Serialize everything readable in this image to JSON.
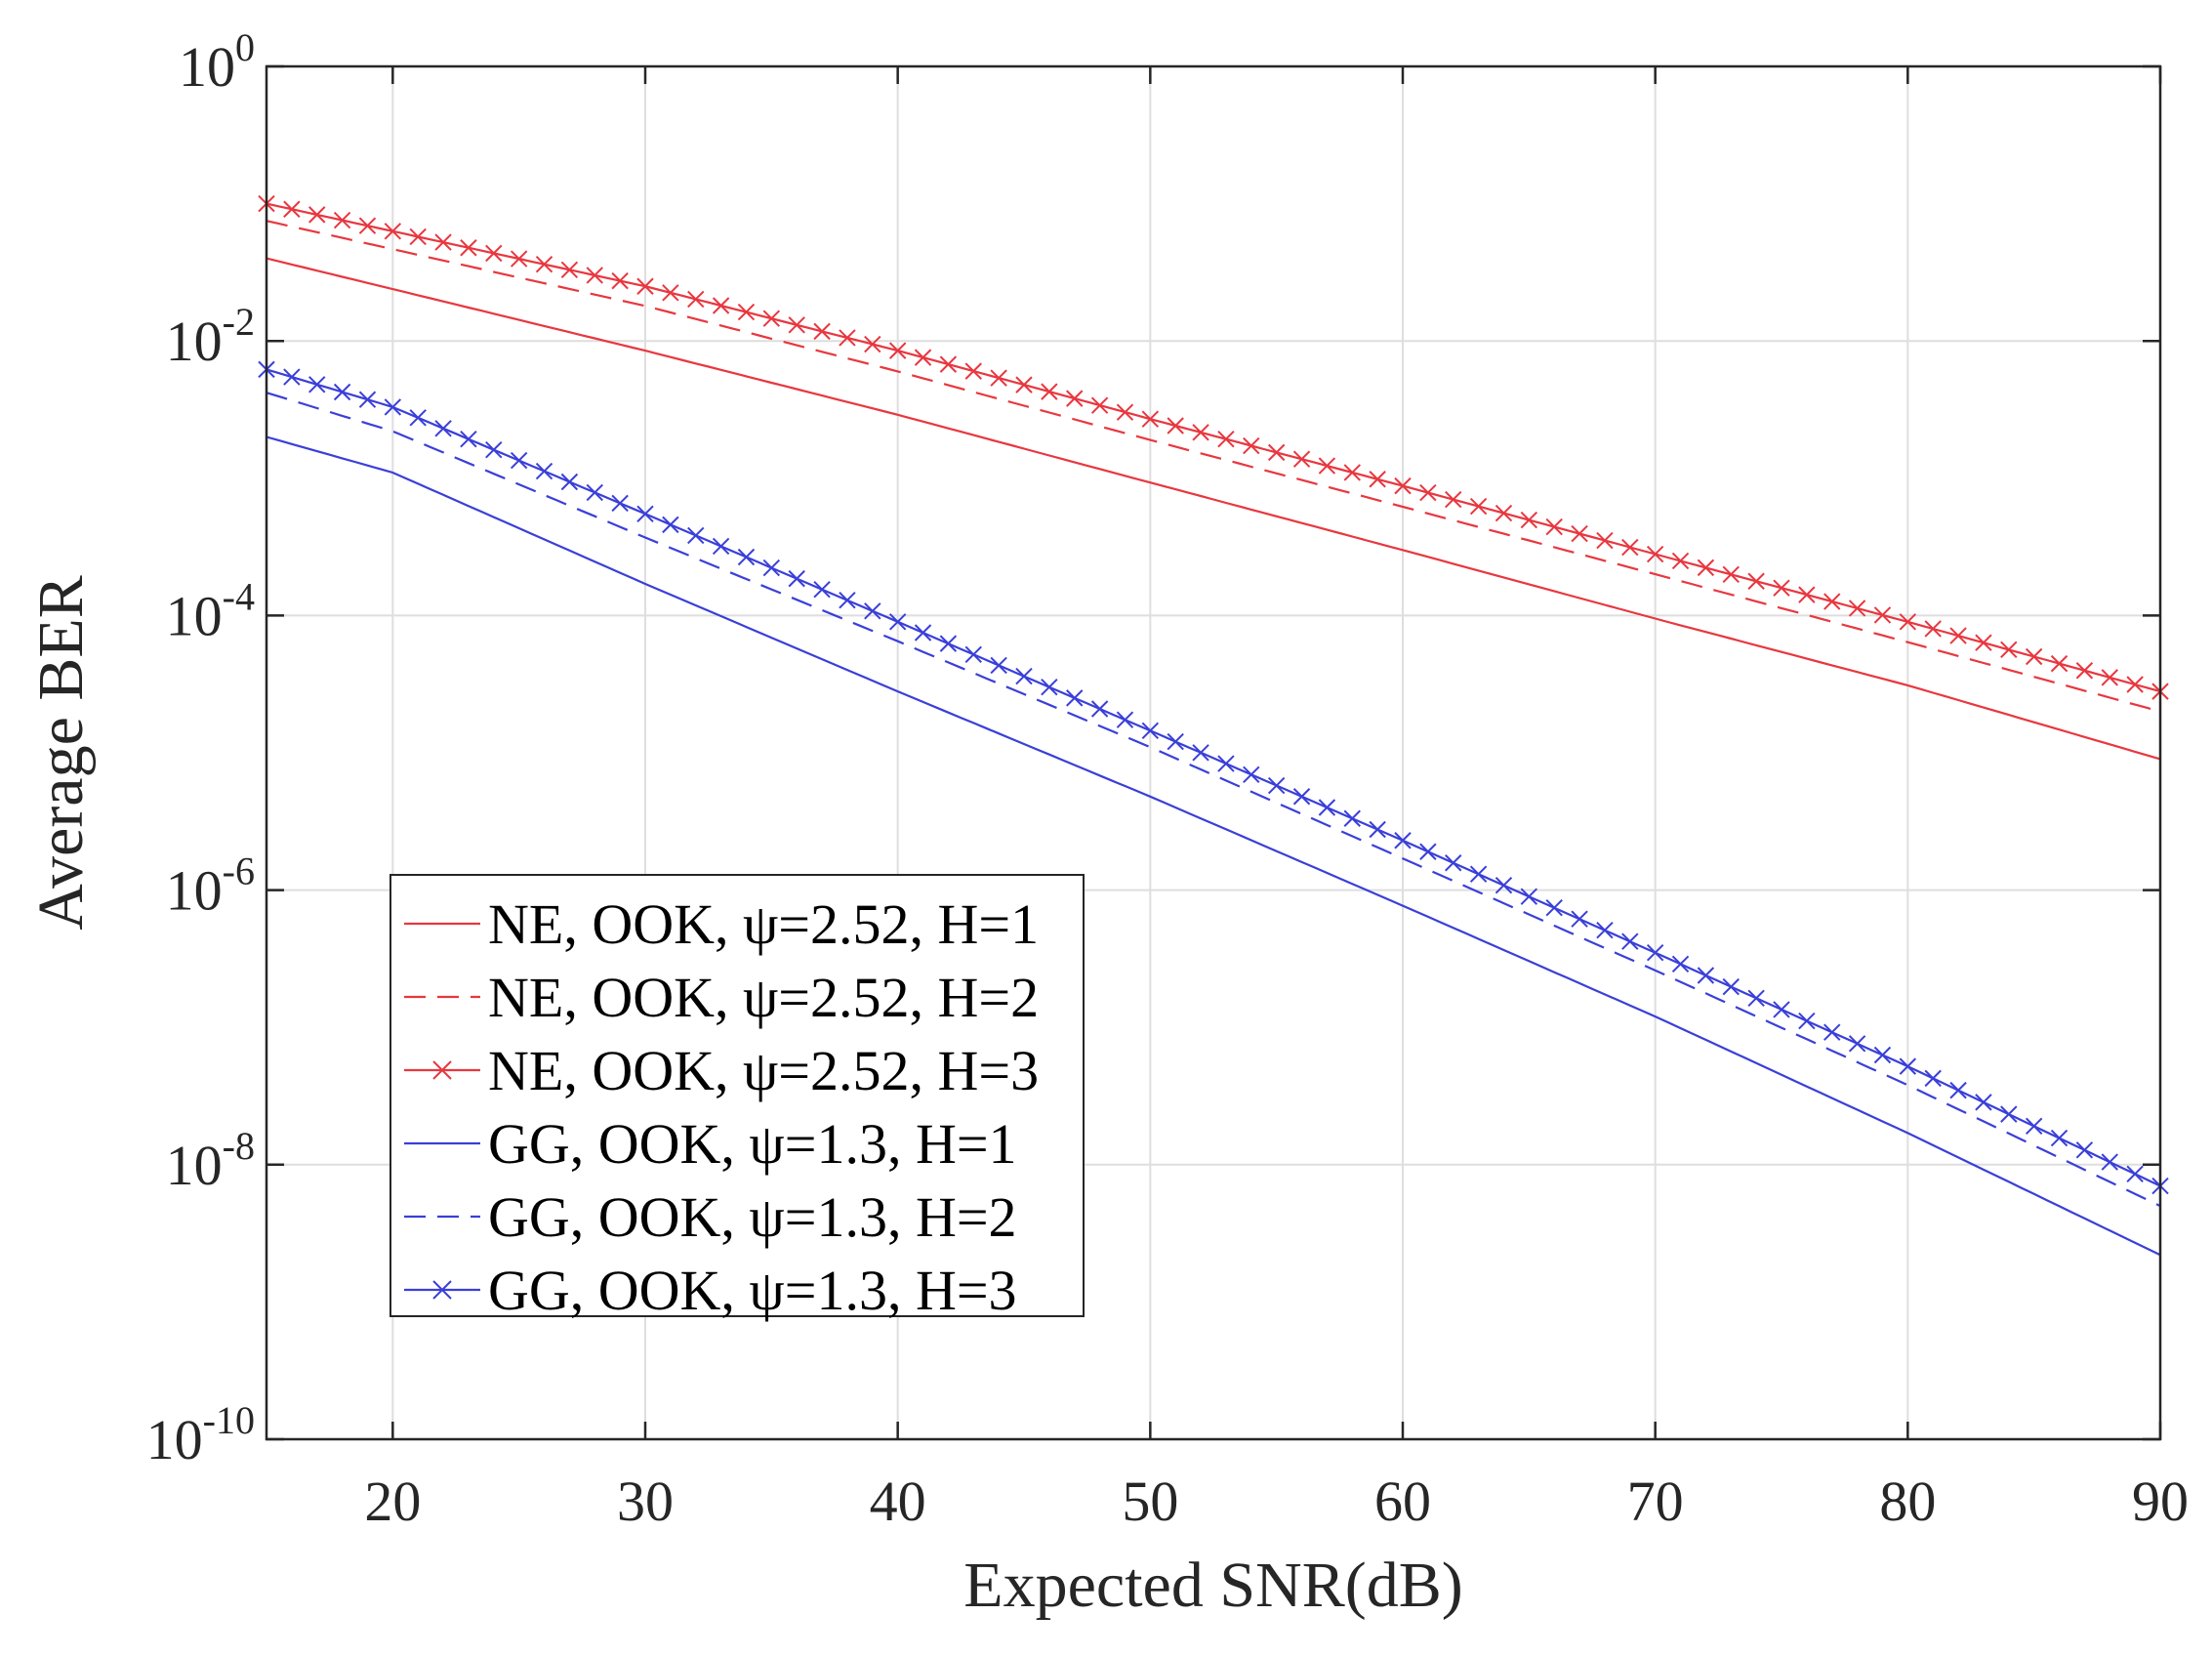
{
  "chart_data": {
    "type": "line",
    "title": "",
    "xlabel": "Expected SNR(dB)",
    "ylabel": "Average BER",
    "xlim": [
      15,
      90
    ],
    "ylim": [
      1e-10,
      1
    ],
    "yscale": "log",
    "grid": true,
    "legend_position": "lower-left",
    "x_ticks": [
      20,
      30,
      40,
      50,
      60,
      70,
      80,
      90
    ],
    "x_tick_labels": [
      "20",
      "30",
      "40",
      "50",
      "60",
      "70",
      "80",
      "90"
    ],
    "y_ticks": [
      {
        "value": 1,
        "base": "10",
        "exp": "0"
      },
      {
        "value": 0.01,
        "base": "10",
        "exp": "-2"
      },
      {
        "value": 0.0001,
        "base": "10",
        "exp": "-4"
      },
      {
        "value": 1e-06,
        "base": "10",
        "exp": "-6"
      },
      {
        "value": 1e-08,
        "base": "10",
        "exp": "-8"
      },
      {
        "value": 1e-10,
        "base": "10",
        "exp": "-10"
      }
    ],
    "series": [
      {
        "name": "NE, OOK, ψ=2.52, H=1",
        "color": "#e8373f",
        "style": "solid",
        "marker": "none",
        "x": [
          15,
          30,
          40,
          50,
          60,
          70,
          80,
          90
        ],
        "y": [
          0.04,
          0.0085,
          0.0029,
          0.00093,
          0.0003,
          9.5e-05,
          3.1e-05,
          9e-06
        ]
      },
      {
        "name": "NE, OOK, ψ=2.52, H=2",
        "color": "#e8373f",
        "style": "dashed",
        "marker": "none",
        "x": [
          15,
          30,
          40,
          50,
          60,
          70,
          80,
          90
        ],
        "y": [
          0.075,
          0.018,
          0.006,
          0.0019,
          0.00062,
          0.0002,
          6.4e-05,
          2e-05
        ]
      },
      {
        "name": "NE, OOK, ψ=2.52, H=3",
        "color": "#e8373f",
        "style": "solid",
        "marker": "x",
        "x": [
          15,
          30,
          40,
          50,
          60,
          70,
          80,
          90
        ],
        "y": [
          0.1,
          0.025,
          0.0085,
          0.0027,
          0.00088,
          0.00028,
          9e-05,
          2.8e-05
        ]
      },
      {
        "name": "GG, OOK, ψ=1.3, H=1",
        "color": "#3a3fd8",
        "style": "solid",
        "marker": "none",
        "x": [
          15,
          20,
          30,
          40,
          50,
          60,
          70,
          80,
          90
        ],
        "y": [
          0.002,
          0.0011,
          0.00017,
          2.8e-05,
          4.8e-06,
          7.7e-07,
          1.2e-07,
          1.7e-08,
          2.2e-09
        ]
      },
      {
        "name": "GG, OOK, ψ=1.3, H=2",
        "color": "#3a3fd8",
        "style": "dashed",
        "marker": "none",
        "x": [
          15,
          20,
          30,
          40,
          50,
          60,
          70,
          80,
          90
        ],
        "y": [
          0.0042,
          0.0022,
          0.00037,
          6.5e-05,
          1.1e-05,
          1.7e-06,
          2.6e-07,
          3.8e-08,
          5e-09
        ]
      },
      {
        "name": "GG, OOK, ψ=1.3, H=3",
        "color": "#3a3fd8",
        "style": "solid",
        "marker": "x",
        "x": [
          15,
          20,
          30,
          40,
          50,
          60,
          70,
          80,
          90
        ],
        "y": [
          0.0062,
          0.0033,
          0.00055,
          9e-05,
          1.45e-05,
          2.3e-06,
          3.5e-07,
          5.2e-08,
          7e-09
        ]
      }
    ]
  }
}
